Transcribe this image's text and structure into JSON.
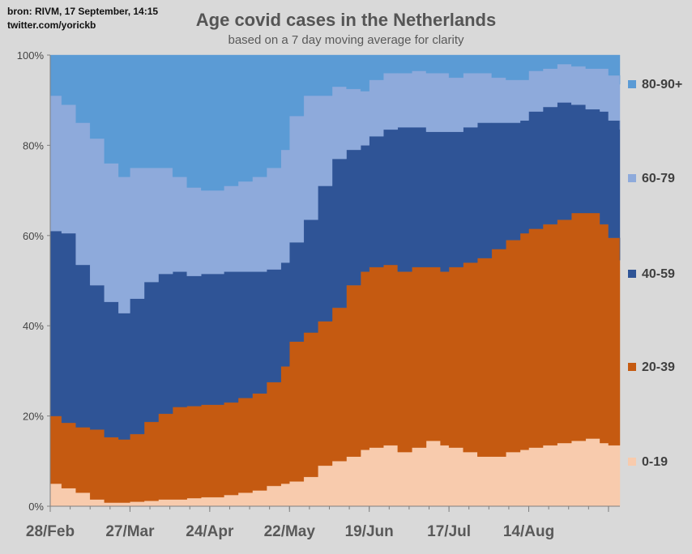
{
  "source": {
    "line1": "bron: RIVM,  17 September, 14:15",
    "line2": "twitter.com/yorickb"
  },
  "chart_data": {
    "type": "area",
    "stacked": true,
    "percent": true,
    "title": "Age covid cases in the Netherlands",
    "subtitle": "based on a 7 day moving average for clarity",
    "x_range": [
      "2020-02-28",
      "2020-09-15"
    ],
    "x_ticks": [
      {
        "date": "2020-02-28",
        "label": "28/Feb"
      },
      {
        "date": "2020-03-27",
        "label": "27/Mar"
      },
      {
        "date": "2020-04-24",
        "label": "24/Apr"
      },
      {
        "date": "2020-05-22",
        "label": "22/May"
      },
      {
        "date": "2020-06-19",
        "label": "19/Jun"
      },
      {
        "date": "2020-07-17",
        "label": "17/Jul"
      },
      {
        "date": "2020-08-14",
        "label": "14/Aug"
      },
      {
        "date": "2020-09-11",
        "label": ""
      }
    ],
    "y_ticks": [
      "0%",
      "20%",
      "40%",
      "60%",
      "80%",
      "100%"
    ],
    "ylim": [
      0,
      100
    ],
    "x": [
      "2020-02-28",
      "2020-03-03",
      "2020-03-08",
      "2020-03-13",
      "2020-03-18",
      "2020-03-23",
      "2020-03-27",
      "2020-04-01",
      "2020-04-06",
      "2020-04-11",
      "2020-04-16",
      "2020-04-21",
      "2020-04-24",
      "2020-04-29",
      "2020-05-04",
      "2020-05-09",
      "2020-05-14",
      "2020-05-19",
      "2020-05-22",
      "2020-05-27",
      "2020-06-01",
      "2020-06-06",
      "2020-06-11",
      "2020-06-16",
      "2020-06-19",
      "2020-06-24",
      "2020-06-29",
      "2020-07-04",
      "2020-07-09",
      "2020-07-14",
      "2020-07-17",
      "2020-07-22",
      "2020-07-27",
      "2020-08-01",
      "2020-08-06",
      "2020-08-11",
      "2020-08-14",
      "2020-08-19",
      "2020-08-24",
      "2020-08-29",
      "2020-09-03",
      "2020-09-08",
      "2020-09-11",
      "2020-09-15"
    ],
    "series": [
      {
        "name": "0-19",
        "color": "#f8cbad",
        "values": [
          5,
          4,
          3,
          1.5,
          0.8,
          0.8,
          1,
          1.2,
          1.5,
          1.5,
          1.8,
          2,
          2,
          2.5,
          3,
          3.5,
          4.5,
          5,
          5.5,
          6.5,
          9,
          10,
          11,
          12.5,
          13,
          13.5,
          12,
          13,
          14.5,
          13.5,
          13,
          12,
          11,
          11,
          12,
          12.5,
          13,
          13.5,
          14,
          14.5,
          15,
          14,
          13.5,
          14.5
        ]
      },
      {
        "name": "20-39",
        "color": "#c55a11",
        "values": [
          15,
          14.5,
          14.5,
          15.5,
          14.5,
          14,
          15,
          17.5,
          19,
          20.5,
          20.5,
          20.5,
          20.5,
          20.5,
          21,
          21.5,
          23,
          26,
          31,
          32,
          32,
          34,
          38,
          39.5,
          40,
          40,
          40,
          40,
          38.5,
          38.5,
          40,
          42,
          44,
          46,
          47,
          48,
          48.5,
          49,
          49.5,
          50.5,
          50,
          48.5,
          46,
          40
        ]
      },
      {
        "name": "40-59",
        "color": "#2f5496",
        "values": [
          41,
          42,
          36,
          32,
          30,
          28,
          30,
          31,
          31,
          30,
          29,
          29,
          29,
          29,
          28,
          27,
          25,
          23,
          22,
          25,
          30,
          33,
          30,
          28,
          29,
          30,
          32,
          31,
          30,
          31,
          30,
          30,
          30,
          28,
          26,
          25,
          26,
          26,
          26,
          24,
          23,
          25,
          26,
          29
        ]
      },
      {
        "name": "60-79",
        "color": "#8eaadb",
        "values": [
          30,
          28.5,
          31.5,
          32.5,
          30.7,
          30.2,
          29,
          25.3,
          23.5,
          21,
          19.7,
          18.5,
          18.5,
          19,
          20,
          21,
          22.5,
          25,
          28,
          27.5,
          20,
          16,
          13.5,
          12,
          12.5,
          12.5,
          12,
          12.5,
          13,
          13,
          12,
          12,
          11,
          10,
          9.5,
          9,
          9,
          8.5,
          8.5,
          8.5,
          9,
          9.5,
          10,
          10
        ]
      },
      {
        "name": "80-90+",
        "color": "#5b9bd5",
        "values": [
          9,
          11,
          15,
          18.5,
          24,
          27,
          25,
          25,
          25,
          27,
          29.5,
          30,
          30,
          29,
          28,
          27,
          25,
          21,
          13.5,
          9,
          9,
          7,
          7.5,
          8,
          5.5,
          4,
          4,
          3.5,
          4,
          4,
          5,
          4,
          4,
          5,
          5.5,
          5.5,
          3.5,
          3,
          2,
          2.5,
          3,
          3,
          4.5,
          6.5
        ]
      }
    ],
    "legend": "right",
    "grid": false
  }
}
